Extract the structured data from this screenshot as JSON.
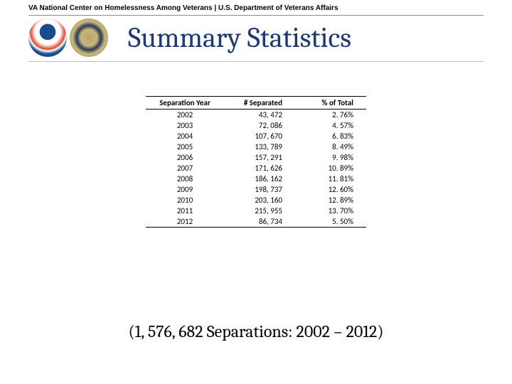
{
  "header": {
    "subtitle": "VA National Center on Homelessness Among Veterans | U.S. Department of Veterans Affairs",
    "title": "Summary Statistics"
  },
  "table": {
    "type": "table",
    "columns": [
      "Separation Year",
      "# Separated",
      "% of Total"
    ],
    "rows": [
      [
        "2002",
        "43, 472",
        "2. 76%"
      ],
      [
        "2003",
        "72, 086",
        "4. 57%"
      ],
      [
        "2004",
        "107, 670",
        "6. 83%"
      ],
      [
        "2005",
        "133, 789",
        "8. 49%"
      ],
      [
        "2006",
        "157, 291",
        "9. 98%"
      ],
      [
        "2007",
        "171, 626",
        "10. 89%"
      ],
      [
        "2008",
        "186, 162",
        "11. 81%"
      ],
      [
        "2009",
        "198, 737",
        "12. 60%"
      ],
      [
        "2010",
        "203, 160",
        "12. 89%"
      ],
      [
        "2011",
        "215, 955",
        "13. 70%"
      ],
      [
        "2012",
        "86, 734",
        "5. 50%"
      ]
    ],
    "border_color": "#000000",
    "font_family": "Calibri",
    "header_fontsize": 11,
    "cell_fontsize": 11,
    "column_align": [
      "center",
      "right",
      "right"
    ]
  },
  "footer": {
    "text": "(1, 576, 682 Separations: 2002 – 2012)"
  },
  "colors": {
    "title_color": "#1f3a6e",
    "background": "#ffffff",
    "divider": "#bbbbbb"
  },
  "typography": {
    "title_fontsize": 40,
    "title_family": "Cambria",
    "subtitle_fontsize": 10,
    "footer_fontsize": 24
  }
}
